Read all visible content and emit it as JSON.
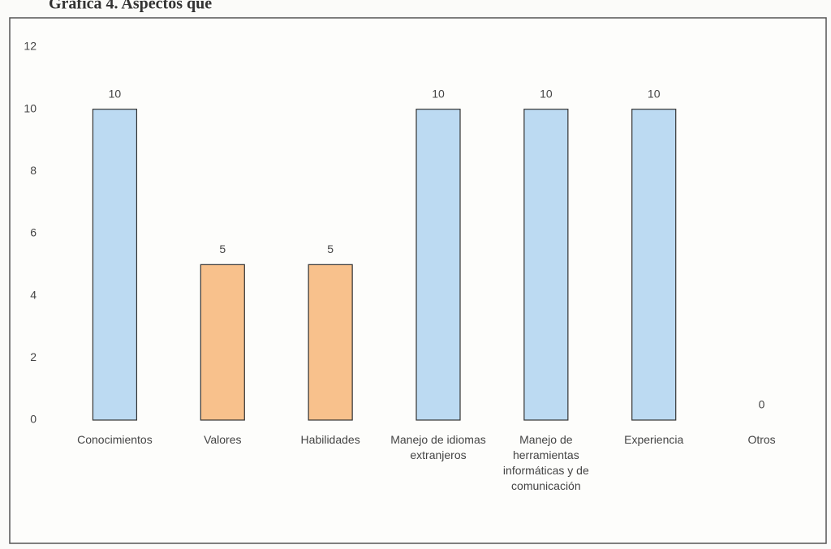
{
  "chart_data": {
    "type": "bar",
    "title": "Gráfica 4. Aspectos que",
    "categories": [
      "Conocimientos",
      "Valores",
      "Habilidades",
      "Manejo de idiomas extranjeros",
      "Manejo de herramientas informáticas y de comunicación",
      "Experiencia",
      "Otros"
    ],
    "values": [
      10,
      5,
      5,
      10,
      10,
      10,
      0
    ],
    "colors": [
      "#bcdaf2",
      "#f8c18c",
      "#f8c18c",
      "#bcdaf2",
      "#bcdaf2",
      "#bcdaf2",
      "#bcdaf2"
    ],
    "ylim": [
      0,
      12
    ],
    "yticks": [
      0,
      2,
      4,
      6,
      8,
      10,
      12
    ],
    "grid": false
  }
}
